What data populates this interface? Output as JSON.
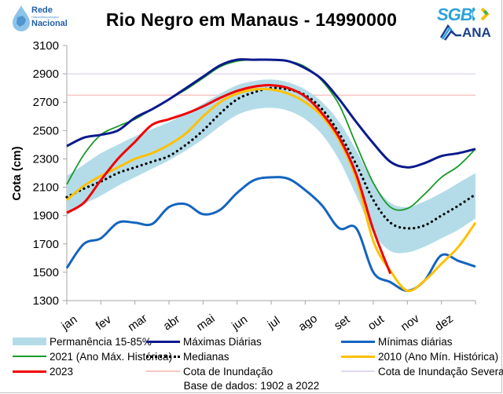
{
  "header": {
    "title": "Rio Negro em Manaus - 14990000",
    "logo_left": {
      "line1": "Rede",
      "line2": "Hidrometeorológica",
      "line3": "Nacional"
    },
    "logo_right_top": "SGB",
    "logo_right_bottom": "ANA"
  },
  "colors": {
    "band": "#b4dce8",
    "max": "#0b1a8c",
    "min": "#1464c0",
    "y2021": "#1a9a2a",
    "median": "#000000",
    "y2010": "#ffc000",
    "y2023": "#f00000",
    "flood": "#f7c5c5",
    "severe": "#e2d9f0"
  },
  "chart_data": {
    "type": "line",
    "title": "Rio Negro em Manaus - 14990000",
    "xlabel": "",
    "ylabel": "Cota (cm)",
    "ylim": [
      1300,
      3100
    ],
    "yticks": [
      1300,
      1500,
      1700,
      1900,
      2100,
      2300,
      2500,
      2700,
      2900,
      3100
    ],
    "x_unit": "month index (0 = start of jan, 12 = end of dez)",
    "xlim": [
      0,
      12
    ],
    "categories": [
      "jan",
      "fev",
      "mar",
      "abr",
      "mai",
      "jun",
      "jul",
      "ago",
      "set",
      "out",
      "nov",
      "dez"
    ],
    "grid": false,
    "legend_position": "bottom",
    "footer": "Base de dados: 1902 a 2022",
    "x": [
      0,
      0.5,
      1,
      1.5,
      2,
      2.5,
      3,
      3.5,
      4,
      4.5,
      5,
      5.5,
      6,
      6.5,
      7,
      7.5,
      8,
      8.5,
      9,
      9.5,
      10,
      10.5,
      11,
      11.5,
      12
    ],
    "band": {
      "name": "Permanência 15-85%",
      "upper": [
        2180,
        2260,
        2340,
        2400,
        2460,
        2510,
        2560,
        2620,
        2690,
        2760,
        2820,
        2850,
        2860,
        2840,
        2790,
        2700,
        2560,
        2360,
        2130,
        1990,
        1960,
        2000,
        2060,
        2130,
        2200
      ],
      "lower": [
        1900,
        1980,
        2040,
        2110,
        2170,
        2230,
        2290,
        2360,
        2440,
        2530,
        2610,
        2650,
        2660,
        2640,
        2580,
        2470,
        2290,
        2040,
        1780,
        1650,
        1640,
        1680,
        1740,
        1800,
        1880
      ]
    },
    "series": [
      {
        "name": "Máximas Diárias",
        "key": "max",
        "values": [
          2390,
          2450,
          2470,
          2500,
          2590,
          2650,
          2720,
          2800,
          2880,
          2960,
          3000,
          3000,
          3000,
          2990,
          2940,
          2860,
          2720,
          2560,
          2410,
          2280,
          2240,
          2270,
          2320,
          2340,
          2370
        ]
      },
      {
        "name": "Mínimas diárias",
        "key": "min",
        "values": [
          1530,
          1700,
          1740,
          1850,
          1850,
          1840,
          1960,
          1980,
          1910,
          1940,
          2060,
          2150,
          2170,
          2160,
          2080,
          1970,
          1810,
          1810,
          1500,
          1430,
          1370,
          1440,
          1620,
          1580,
          1540
        ]
      },
      {
        "name": "2021 (Ano Máx. Histórica)",
        "key": "y2021",
        "values": [
          2120,
          2330,
          2470,
          2530,
          2580,
          2650,
          2720,
          2790,
          2870,
          2950,
          2990,
          3000,
          3000,
          2990,
          2950,
          2850,
          2680,
          2400,
          2130,
          1960,
          1950,
          2050,
          2170,
          2250,
          2370
        ]
      },
      {
        "name": "Medianas",
        "key": "median",
        "values": [
          2030,
          2090,
          2140,
          2200,
          2240,
          2280,
          2320,
          2400,
          2500,
          2620,
          2720,
          2770,
          2800,
          2790,
          2750,
          2650,
          2480,
          2260,
          2010,
          1850,
          1810,
          1830,
          1900,
          1970,
          2050
        ]
      },
      {
        "name": "2010 (Ano Mín. Histórica)",
        "key": "y2010",
        "values": [
          2010,
          2110,
          2180,
          2240,
          2300,
          2340,
          2400,
          2480,
          2600,
          2700,
          2760,
          2790,
          2790,
          2760,
          2700,
          2600,
          2430,
          2160,
          1720,
          1510,
          1370,
          1440,
          1560,
          1680,
          1850
        ]
      },
      {
        "name": "2023",
        "key": "y2023",
        "values": [
          1920,
          1990,
          2150,
          2300,
          2420,
          2540,
          2580,
          2620,
          2670,
          2730,
          2780,
          2810,
          2820,
          2800,
          2740,
          2620,
          2450,
          2190,
          1800,
          1490,
          null,
          null,
          null,
          null,
          null
        ]
      },
      {
        "name": "Cota de Inundação",
        "key": "flood",
        "constant": 2750
      },
      {
        "name": "Cota de Inundação Severa",
        "key": "severe",
        "constant": 2900
      }
    ]
  },
  "legend": {
    "band": "Permanência 15-85%",
    "max": "Máximas Diárias",
    "min": "Mínimas diárias",
    "y2021": "2021 (Ano Máx. Histórica)",
    "median": "Medianas",
    "y2010": "2010 (Ano Mín. Histórica)",
    "y2023": "2023",
    "flood": "Cota de Inundação",
    "severe": "Cota de Inundação Severa"
  }
}
